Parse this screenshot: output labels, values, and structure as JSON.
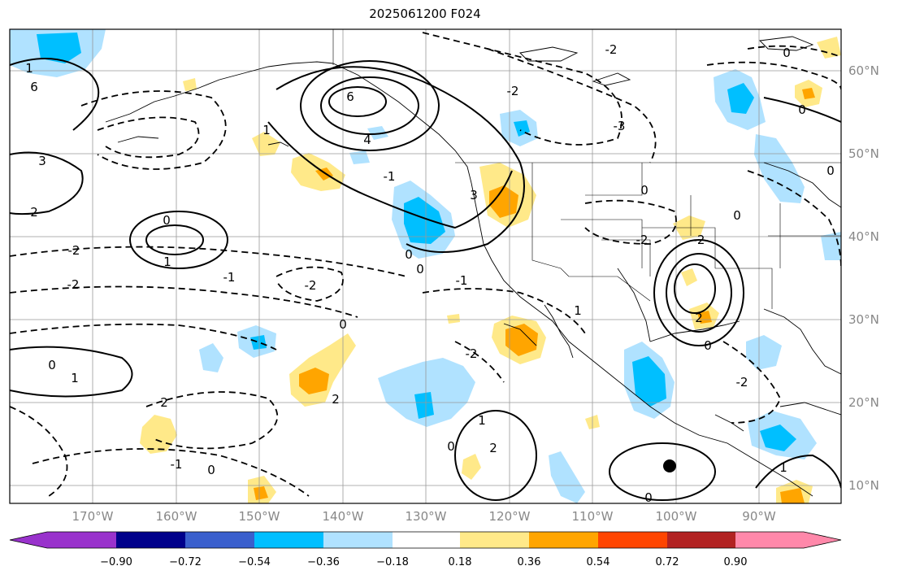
{
  "title": "2025061200 F024",
  "longitude_labels": [
    "170°W",
    "160°W",
    "150°W",
    "140°W",
    "130°W",
    "120°W",
    "110°W",
    "100°W",
    "90°W"
  ],
  "latitude_labels": [
    "60°N",
    "50°N",
    "40°N",
    "30°N",
    "20°N",
    "10°N"
  ],
  "colorbar": {
    "tick_labels": [
      "−0.90",
      "−0.72",
      "−0.54",
      "−0.36",
      "−0.18",
      "0.18",
      "0.36",
      "0.54",
      "0.72",
      "0.90"
    ],
    "colors": [
      "#9932cc",
      "#00008b",
      "#3a5fcd",
      "#00bfff",
      "#b0e2ff",
      "#ffffff",
      "#ffe989",
      "#ffa500",
      "#ff4500",
      "#b22222",
      "#ff88aa"
    ]
  },
  "contour_labels": [
    "6",
    "4",
    "3",
    "2",
    "1",
    "0",
    "-1",
    "-2",
    "-3"
  ],
  "storm_marker": {
    "lon": -100.1,
    "lat": 12.2
  }
}
